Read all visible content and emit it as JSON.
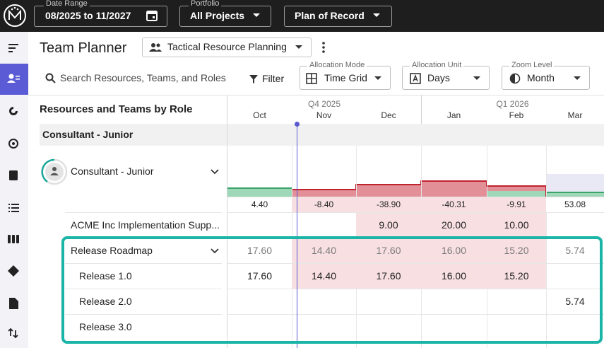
{
  "top_bar": {
    "date_range": {
      "label": "Date Range",
      "value": "08/2025 to 11/2027"
    },
    "portfolio": {
      "label": "Portfolio",
      "value": "All Projects"
    },
    "plan": "Plan of Record"
  },
  "header": {
    "title": "Team Planner",
    "view": "Tactical Resource Planning"
  },
  "toolbar": {
    "search": "Search Resources, Teams, and Roles",
    "filter": "Filter",
    "allocation_mode": {
      "label": "Allocation Mode",
      "value": "Time Grid"
    },
    "allocation_unit": {
      "label": "Allocation Unit",
      "value": "Days"
    },
    "zoom_level": {
      "label": "Zoom Level",
      "value": "Month"
    }
  },
  "grid": {
    "heading": "Resources and Teams by Role",
    "quarters": [
      "Q4 2025",
      "Q1 2026"
    ],
    "months": [
      "Oct",
      "Nov",
      "Dec",
      "Jan",
      "Feb",
      "Mar"
    ],
    "group": "Consultant - Junior",
    "role": {
      "name": "Consultant - Junior",
      "totals": [
        "4.40",
        "-8.40",
        "-38.90",
        "-40.31",
        "-9.91",
        "53.08"
      ]
    },
    "rows": [
      {
        "name": "ACME Inc Implementation Supp...",
        "values": [
          null,
          null,
          "9.00",
          "20.00",
          "10.00",
          null
        ]
      },
      {
        "name": "Release Roadmap",
        "values": [
          "17.60",
          "14.40",
          "17.60",
          "16.00",
          "15.20",
          "5.74"
        ]
      },
      {
        "name": "Release 1.0",
        "values": [
          "17.60",
          "14.40",
          "17.60",
          "16.00",
          "15.20",
          null
        ]
      },
      {
        "name": "Release 2.0",
        "values": [
          null,
          null,
          null,
          null,
          null,
          "5.74"
        ]
      },
      {
        "name": "Release 3.0",
        "values": [
          null,
          null,
          null,
          null,
          null,
          null
        ]
      }
    ]
  }
}
